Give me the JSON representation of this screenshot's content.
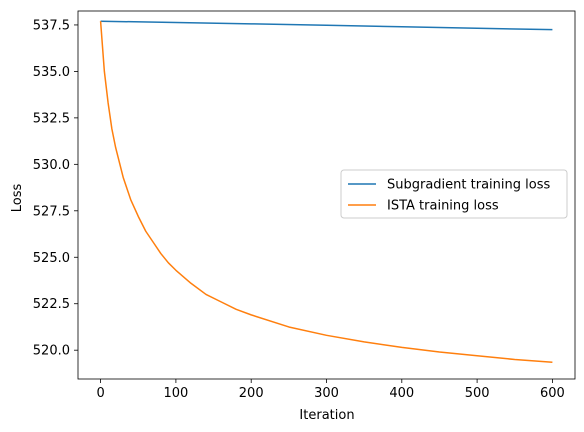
{
  "chart_data": {
    "type": "line",
    "title": "",
    "xlabel": "Iteration",
    "ylabel": "Loss",
    "xlim": [
      -30,
      630
    ],
    "ylim": [
      518.45,
      538.25
    ],
    "xticks": [
      0,
      100,
      200,
      300,
      400,
      500,
      600
    ],
    "yticks": [
      520.0,
      522.5,
      525.0,
      527.5,
      530.0,
      532.5,
      535.0,
      537.5
    ],
    "grid": false,
    "legend_position": "center-right",
    "series": [
      {
        "name": "Subgradient training loss",
        "color": "#1f77b4",
        "x": [
          0,
          100,
          200,
          300,
          400,
          500,
          600
        ],
        "y": [
          537.7,
          537.63,
          537.56,
          537.48,
          537.4,
          537.32,
          537.25
        ]
      },
      {
        "name": "ISTA training loss",
        "color": "#ff7f0e",
        "x": [
          0,
          5,
          10,
          15,
          20,
          30,
          40,
          50,
          60,
          70,
          80,
          90,
          100,
          120,
          140,
          160,
          180,
          200,
          250,
          300,
          350,
          400,
          450,
          500,
          550,
          600
        ],
        "y": [
          537.7,
          535.0,
          533.3,
          531.9,
          530.9,
          529.3,
          528.1,
          527.2,
          526.4,
          525.8,
          525.2,
          524.7,
          524.3,
          523.6,
          523.0,
          522.6,
          522.2,
          521.9,
          521.25,
          520.8,
          520.45,
          520.15,
          519.9,
          519.7,
          519.5,
          519.35
        ]
      }
    ]
  }
}
